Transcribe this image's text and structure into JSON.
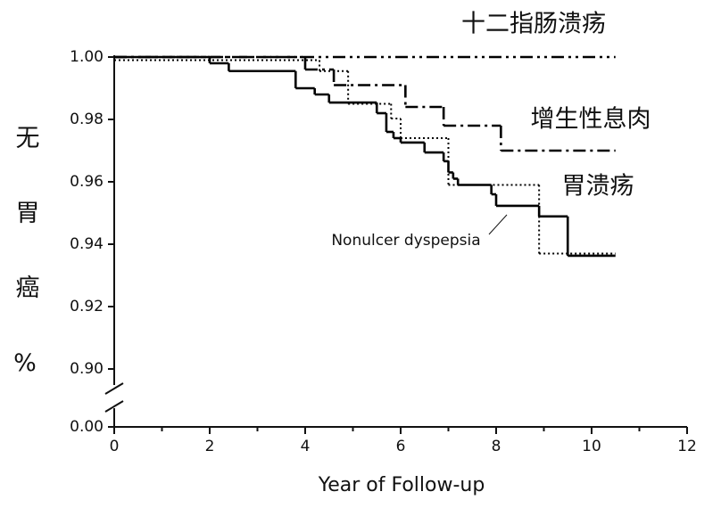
{
  "chart_data": {
    "type": "step",
    "xlabel": "Year of Follow-up",
    "ylabel": "无胃癌%",
    "xlim": [
      0,
      12
    ],
    "xticks": [
      0,
      2,
      4,
      6,
      8,
      10,
      12
    ],
    "xminorticks": [
      1,
      3,
      5,
      7,
      9,
      11
    ],
    "ylim": [
      0.9,
      1.0
    ],
    "yticks": [
      {
        "value": 1.0,
        "label": "1.00"
      },
      {
        "value": 0.98,
        "label": "0.98"
      },
      {
        "value": 0.96,
        "label": "0.96"
      },
      {
        "value": 0.94,
        "label": "0.94"
      },
      {
        "value": 0.92,
        "label": "0.92"
      },
      {
        "value": 0.9,
        "label": "0.90"
      },
      {
        "value": 0,
        "label": "0.00"
      }
    ],
    "axis_break": true,
    "series": [
      {
        "name": "十二指肠溃疡",
        "color": "#000000",
        "style": "dashdotdot",
        "x": [
          0,
          10.5
        ],
        "values": [
          1.0,
          1.0
        ]
      },
      {
        "name": "增生性息肉",
        "color": "#000000",
        "style": "dashdot",
        "x": [
          0,
          4.0,
          4.6,
          6.1,
          6.9,
          8.1,
          10.5
        ],
        "values": [
          1.0,
          0.996,
          0.991,
          0.984,
          0.978,
          0.97,
          0.97
        ]
      },
      {
        "name": "胃溃疡",
        "color": "#000000",
        "style": "solid",
        "x": [
          0,
          2.0,
          2.4,
          3.8,
          4.2,
          4.5,
          5.5,
          5.7,
          5.85,
          6.0,
          6.5,
          6.9,
          7.0,
          7.1,
          7.2,
          7.9,
          8.0,
          8.9,
          9.5,
          10.5
        ],
        "values": [
          1.0,
          0.998,
          0.9955,
          0.99,
          0.988,
          0.9854,
          0.982,
          0.976,
          0.974,
          0.9726,
          0.9694,
          0.9666,
          0.963,
          0.961,
          0.959,
          0.956,
          0.9523,
          0.9489,
          0.9363,
          0.9363
        ]
      },
      {
        "name": "Nonulcer dyspepsia",
        "color": "#000000",
        "style": "dotted",
        "x": [
          0,
          4.3,
          4.9,
          5.8,
          6.0,
          7.0,
          8.9,
          10.5
        ],
        "values": [
          0.999,
          0.9955,
          0.985,
          0.9803,
          0.974,
          0.959,
          0.937,
          0.937
        ]
      }
    ]
  }
}
